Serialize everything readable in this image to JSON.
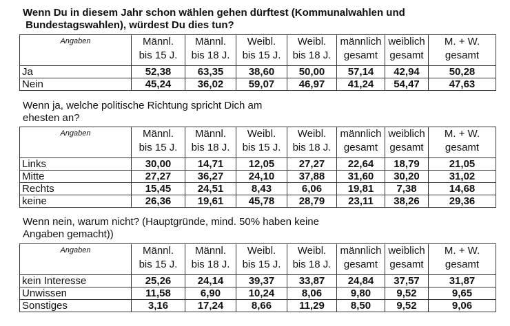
{
  "columns": [
    "Angaben",
    "Männl.\nbis 15 J.",
    "Männl.\nbis 18 J.",
    "Weibl.\nbis 15 J.",
    "Weibl.\nbis 18 J.",
    "männlich\ngesamt",
    "weiblich\ngesamt",
    "M. + W.\ngesamt"
  ],
  "sections": [
    {
      "title_line1": "Wenn Du in diesem Jahr schon wählen gehen dürftest (Kommunalwahlen und",
      "title_line2": " Bundestagswahlen), würdest Du dies tun?",
      "rows": [
        {
          "label": "Ja",
          "values": [
            "52,38",
            "63,35",
            "38,60",
            "50,00",
            "57,14",
            "42,94",
            "50,28"
          ]
        },
        {
          "label": "Nein",
          "values": [
            "45,24",
            "36,02",
            "59,07",
            "46,97",
            "41,24",
            "54,47",
            "47,63"
          ]
        }
      ]
    },
    {
      "title_line1": "Wenn ja, welche politische Richtung spricht Dich am",
      "title_line2": "ehesten an?",
      "rows": [
        {
          "label": "Links",
          "values": [
            "30,00",
            "14,71",
            "12,05",
            "27,27",
            "22,64",
            "18,79",
            "21,05"
          ]
        },
        {
          "label": "Mitte",
          "values": [
            "27,27",
            "36,27",
            "24,10",
            "37,88",
            "31,60",
            "30,20",
            "31,02"
          ]
        },
        {
          "label": "Rechts",
          "values": [
            "15,45",
            "24,51",
            "8,43",
            "6,06",
            "19,81",
            "7,38",
            "14,68"
          ]
        },
        {
          "label": "keine",
          "values": [
            "26,36",
            "19,61",
            "45,78",
            "28,79",
            "23,11",
            "38,26",
            "29,36"
          ]
        }
      ]
    },
    {
      "title_line1": "Wenn nein, warum nicht? (Hauptgründe, mind. 50% haben keine",
      "title_line2": "Angaben gemacht))",
      "rows": [
        {
          "label": "kein Interesse",
          "values": [
            "25,26",
            "24,14",
            "39,37",
            "33,87",
            "24,84",
            "37,57",
            "31,87"
          ]
        },
        {
          "label": "Unwissen",
          "values": [
            "11,58",
            "6,90",
            "10,24",
            "8,06",
            "9,80",
            "9,52",
            "9,65"
          ]
        },
        {
          "label": "Sonstiges",
          "values": [
            "3,16",
            "17,24",
            "8,66",
            "11,29",
            "8,50",
            "9,52",
            "9,06"
          ]
        }
      ]
    }
  ]
}
